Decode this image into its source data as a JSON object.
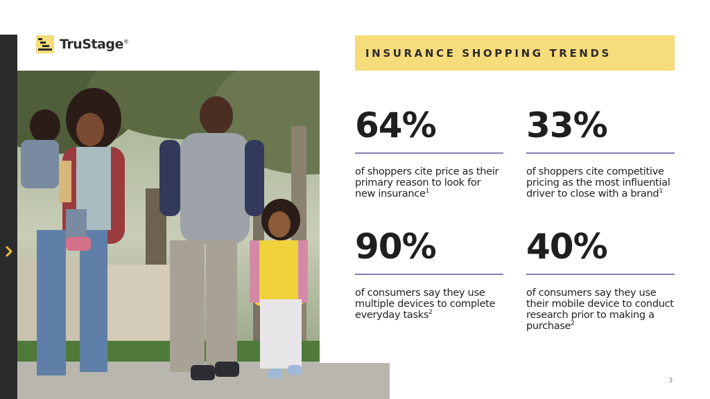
{
  "brand": {
    "name": "TruStage",
    "trademark": "®"
  },
  "banner": {
    "title": "INSURANCE SHOPPING TRENDS"
  },
  "stats": [
    {
      "value": "64%",
      "text": "of shoppers cite price as their primary reason to look for new insurance",
      "footnote": "1"
    },
    {
      "value": "33%",
      "text": "of shoppers cite competitive pricing as the most influential driver to close with a brand",
      "footnote": "1"
    },
    {
      "value": "90%",
      "text": "of consumers say they use multiple devices to complete everyday tasks",
      "footnote": "2"
    },
    {
      "value": "40%",
      "text": "of consumers say they use their mobile device to conduct research prior to making a purchase",
      "footnote": "2"
    }
  ],
  "page_number": "3",
  "colors": {
    "accent_yellow": "#f6dc7a",
    "rule_purple": "#8a7bb2",
    "dark_bar": "#2b2b2b",
    "chevron_yellow": "#f2c12e"
  },
  "icons": {
    "nav": "chevron-right-icon",
    "logo": "trustage-logo-icon"
  }
}
